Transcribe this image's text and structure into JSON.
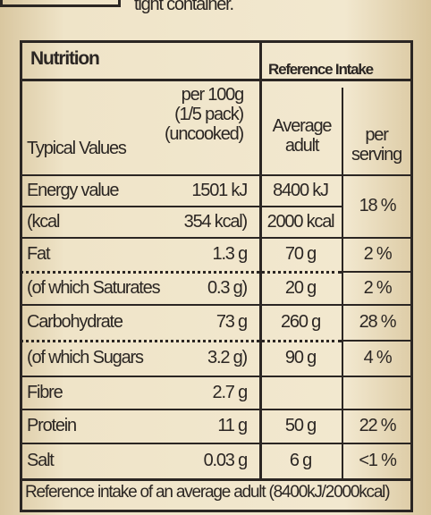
{
  "top_text": "tight container.",
  "header": {
    "title": "Nutrition",
    "reference": "Reference Intake"
  },
  "columns": {
    "typical": "Typical Values",
    "per100g": [
      "per 100g",
      "(1/5 pack)",
      "(uncooked)"
    ],
    "adult": [
      "Average",
      "adult"
    ],
    "serving": [
      "per",
      "serving"
    ]
  },
  "rows": [
    [
      "Energy value",
      "1501 kJ",
      "8400 kJ",
      "18 %"
    ],
    [
      "(kcal",
      "354 kcal)",
      "2000 kcal"
    ],
    [
      "Fat",
      "1.3 g",
      "70 g",
      "2 %"
    ],
    [
      "(of which Saturates",
      "0.3 g)",
      "20 g",
      "2 %"
    ],
    [
      "Carbohydrate",
      "73 g",
      "260 g",
      "28 %"
    ],
    [
      "(of which Sugars",
      "3.2 g)",
      "90 g",
      "4 %"
    ],
    [
      "Fibre",
      "2.7 g"
    ],
    [
      "Protein",
      "11 g",
      "50 g",
      "22 %"
    ],
    [
      "Salt",
      "0.03 g",
      "6 g",
      "<1 %"
    ]
  ],
  "footer": "Reference intake of an average adult (8400kJ/2000kcal)"
}
